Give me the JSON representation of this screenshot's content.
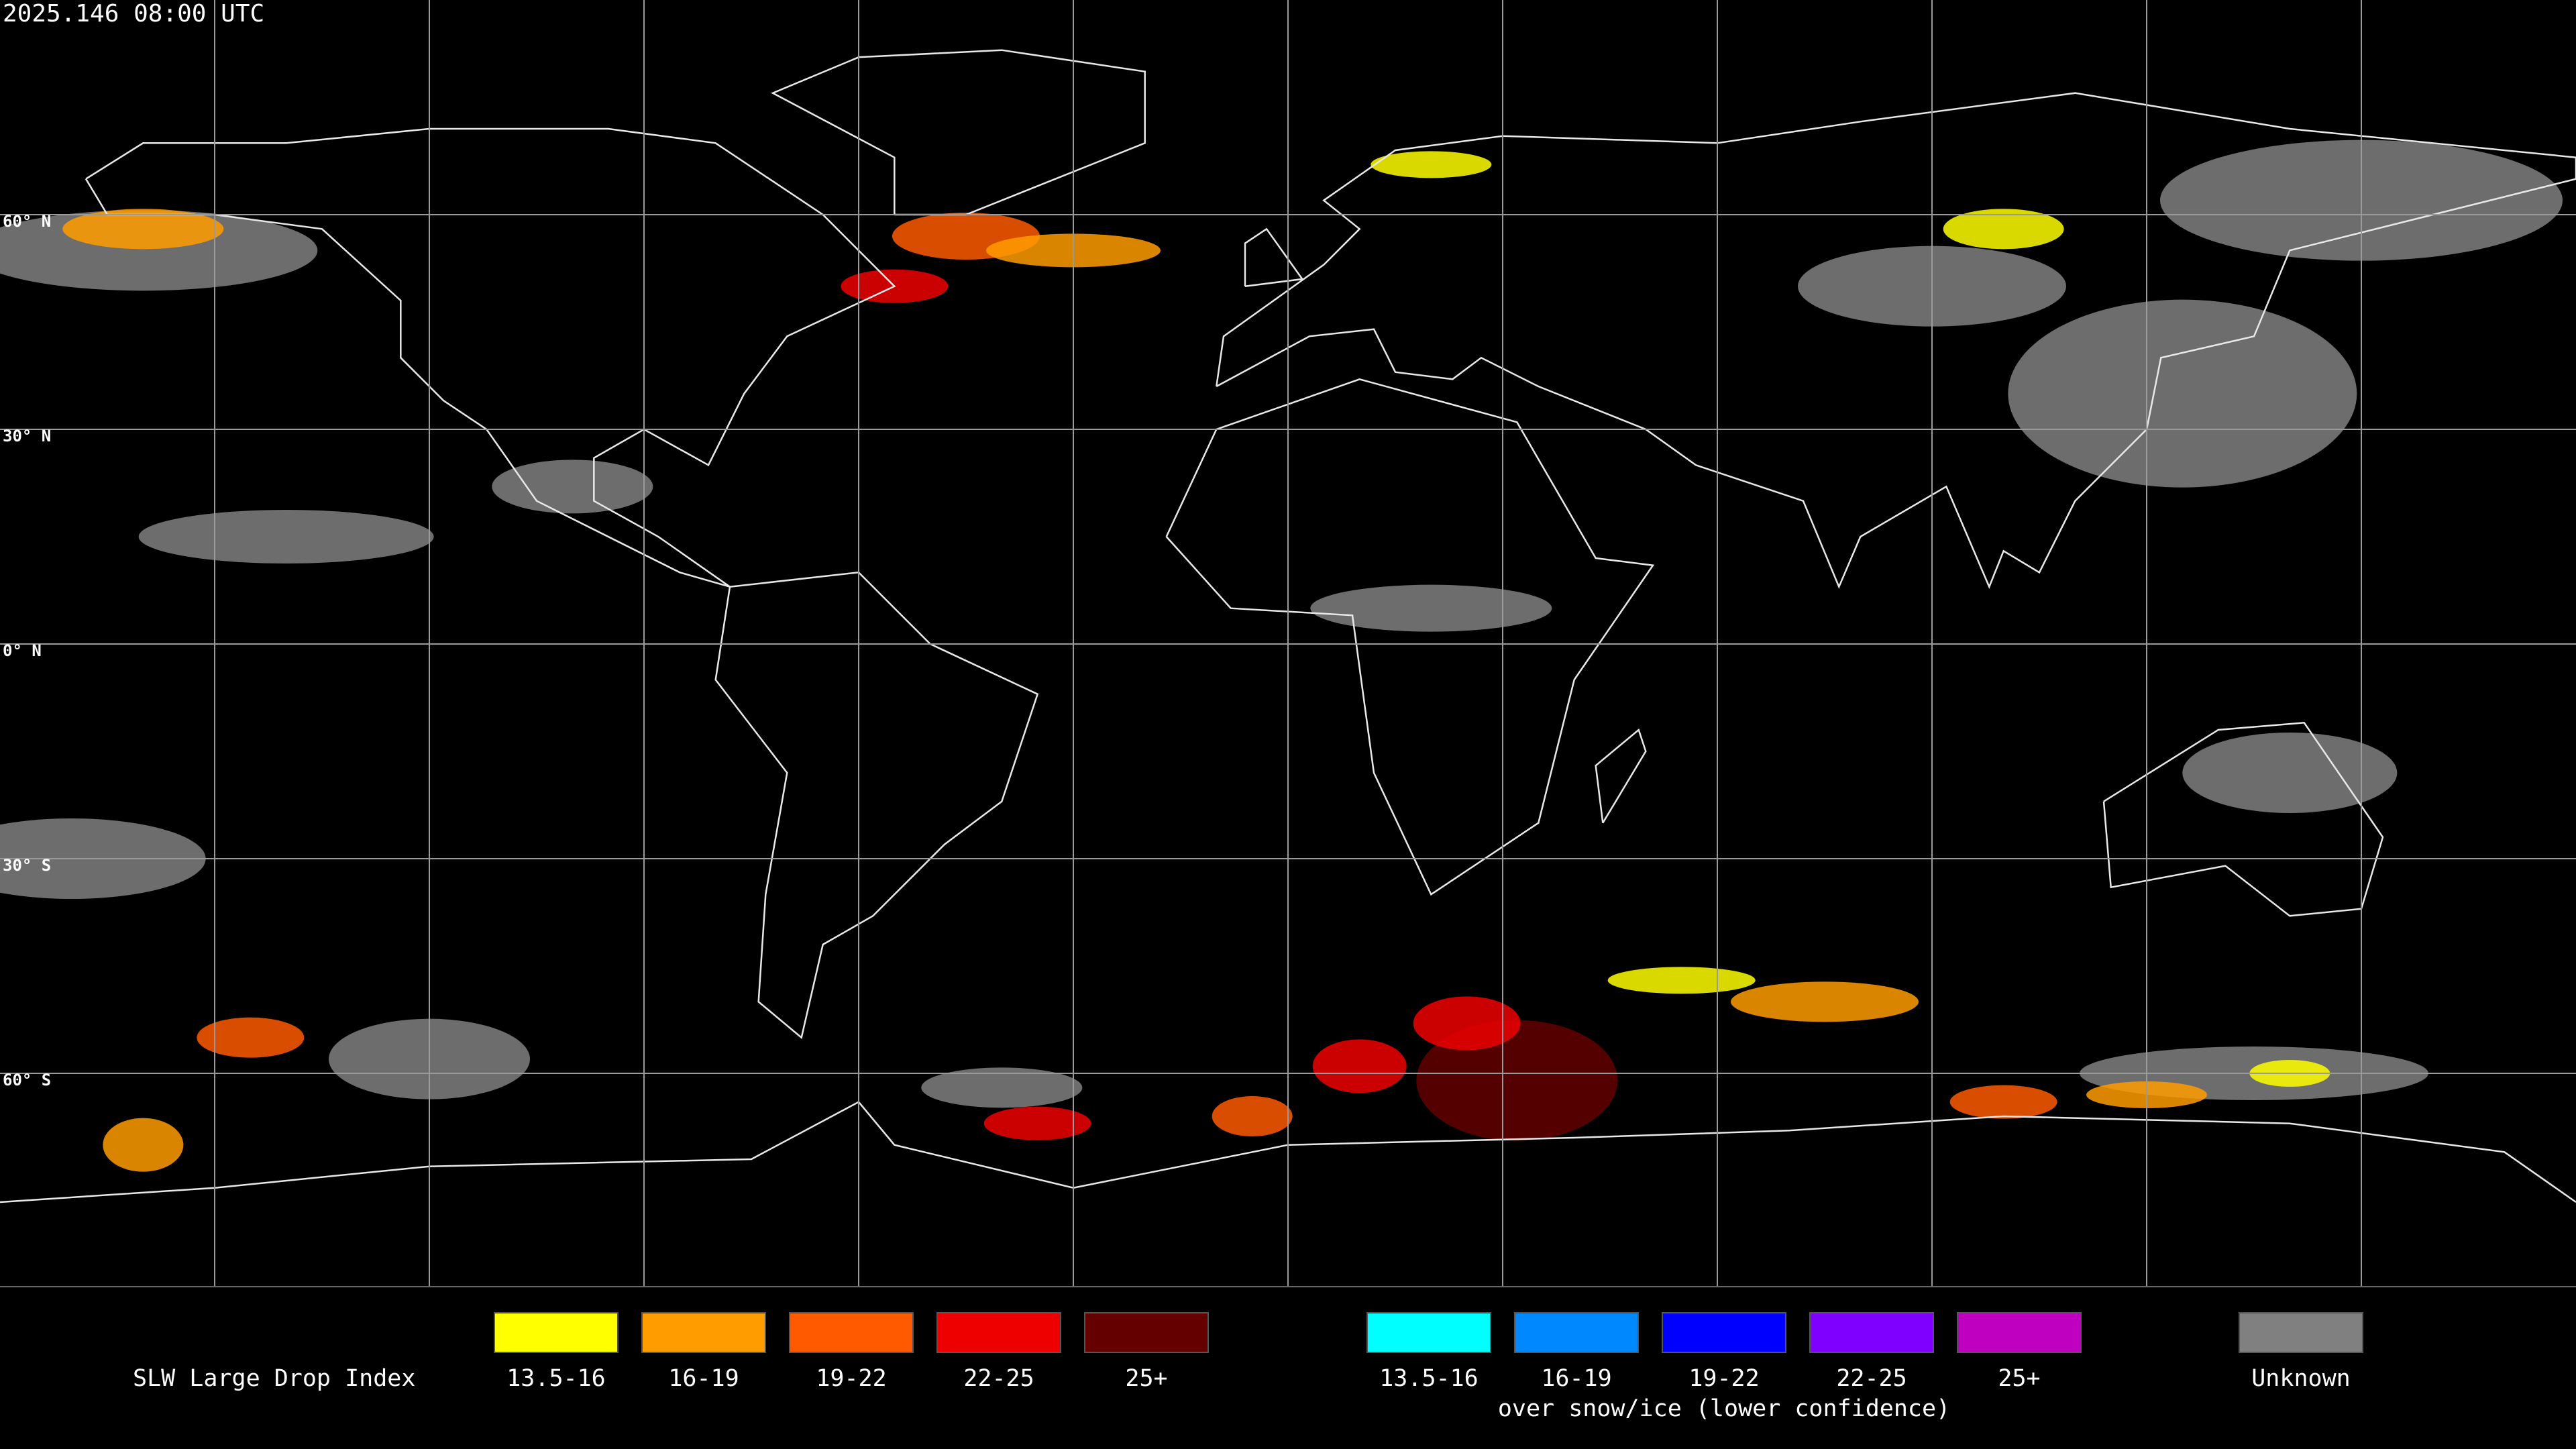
{
  "header": {
    "title": "2025.146 08:00 UTC"
  },
  "map": {
    "lat_labels": [
      "60° N",
      "30° N",
      "0° N",
      "30° S",
      "60° S"
    ]
  },
  "legend": {
    "title": "SLW Large Drop Index",
    "groups": [
      {
        "items": [
          {
            "label": "13.5-16",
            "color": "#ffff00"
          },
          {
            "label": "16-19",
            "color": "#ff9c00"
          },
          {
            "label": "19-22",
            "color": "#ff5a00"
          },
          {
            "label": "22-25",
            "color": "#ee0000"
          },
          {
            "label": "25+",
            "color": "#640000"
          }
        ]
      },
      {
        "items": [
          {
            "label": "13.5-16",
            "color": "#00ffff"
          },
          {
            "label": "16-19",
            "color": "#0088ff"
          },
          {
            "label": "19-22",
            "color": "#0000ff"
          },
          {
            "label": "22-25",
            "color": "#8000ff"
          },
          {
            "label": "25+",
            "color": "#c000c0"
          }
        ],
        "caption": "over snow/ice (lower confidence)"
      },
      {
        "items": [
          {
            "label": "Unknown",
            "color": "#808080"
          }
        ]
      }
    ]
  }
}
